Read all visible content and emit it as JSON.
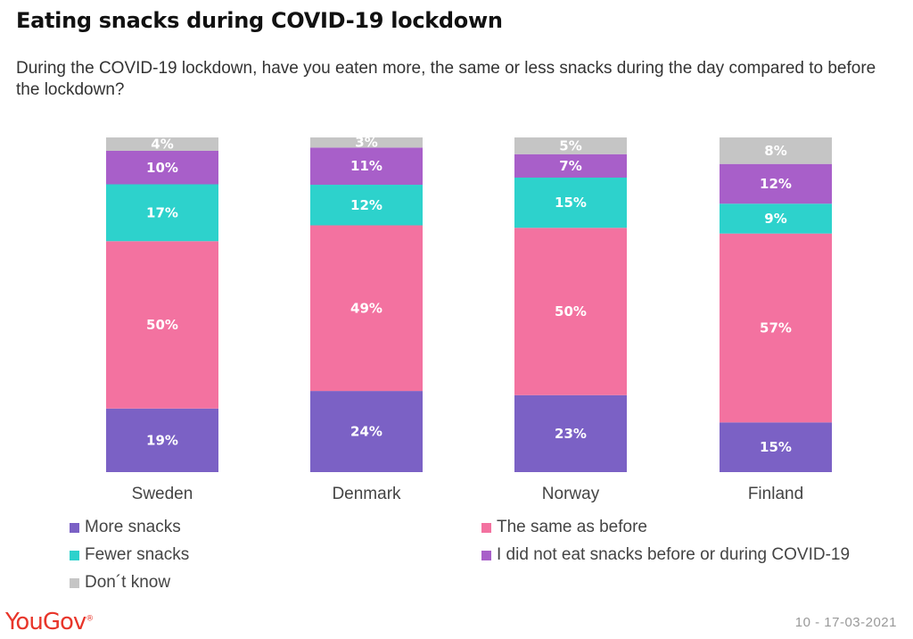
{
  "title": "Eating snacks during COVID-19 lockdown",
  "subtitle": "During the COVID-19 lockdown, have you eaten more, the same or less snacks during the day compared to before the lockdown?",
  "footnote": "10 - 17-03-2021",
  "brand": {
    "name": "YouGov",
    "mark": "®",
    "color": "#e8352a"
  },
  "chart_data": {
    "type": "bar",
    "stacked": true,
    "value_format": "percent",
    "categories": [
      "Sweden",
      "Denmark",
      "Norway",
      "Finland"
    ],
    "series": [
      {
        "name": "More snacks",
        "color": "#7b61c5",
        "values": [
          19,
          24,
          23,
          15
        ],
        "labels": [
          "19%",
          "24%",
          "23%",
          "15%"
        ]
      },
      {
        "name": "The same as before",
        "color": "#f372a0",
        "values": [
          50,
          49,
          50,
          57
        ],
        "labels": [
          "50%",
          "49%",
          "50%",
          "57%"
        ]
      },
      {
        "name": "Fewer snacks",
        "color": "#2dd2cc",
        "values": [
          17,
          12,
          15,
          9
        ],
        "labels": [
          "17%",
          "12%",
          "15%",
          "9%"
        ]
      },
      {
        "name": "I did not eat snacks before or during COVID-19",
        "color": "#a85fc9",
        "values": [
          10,
          11,
          7,
          12
        ],
        "labels": [
          "10%",
          "11%",
          "7%",
          "12%"
        ]
      },
      {
        "name": "Don´t know",
        "color": "#c5c5c5",
        "values": [
          4,
          3,
          5,
          8
        ],
        "labels": [
          "4%",
          "3%",
          "5%",
          "8%"
        ]
      }
    ],
    "legend": {
      "position": "bottom",
      "order": [
        0,
        1,
        2,
        3,
        4
      ]
    }
  }
}
